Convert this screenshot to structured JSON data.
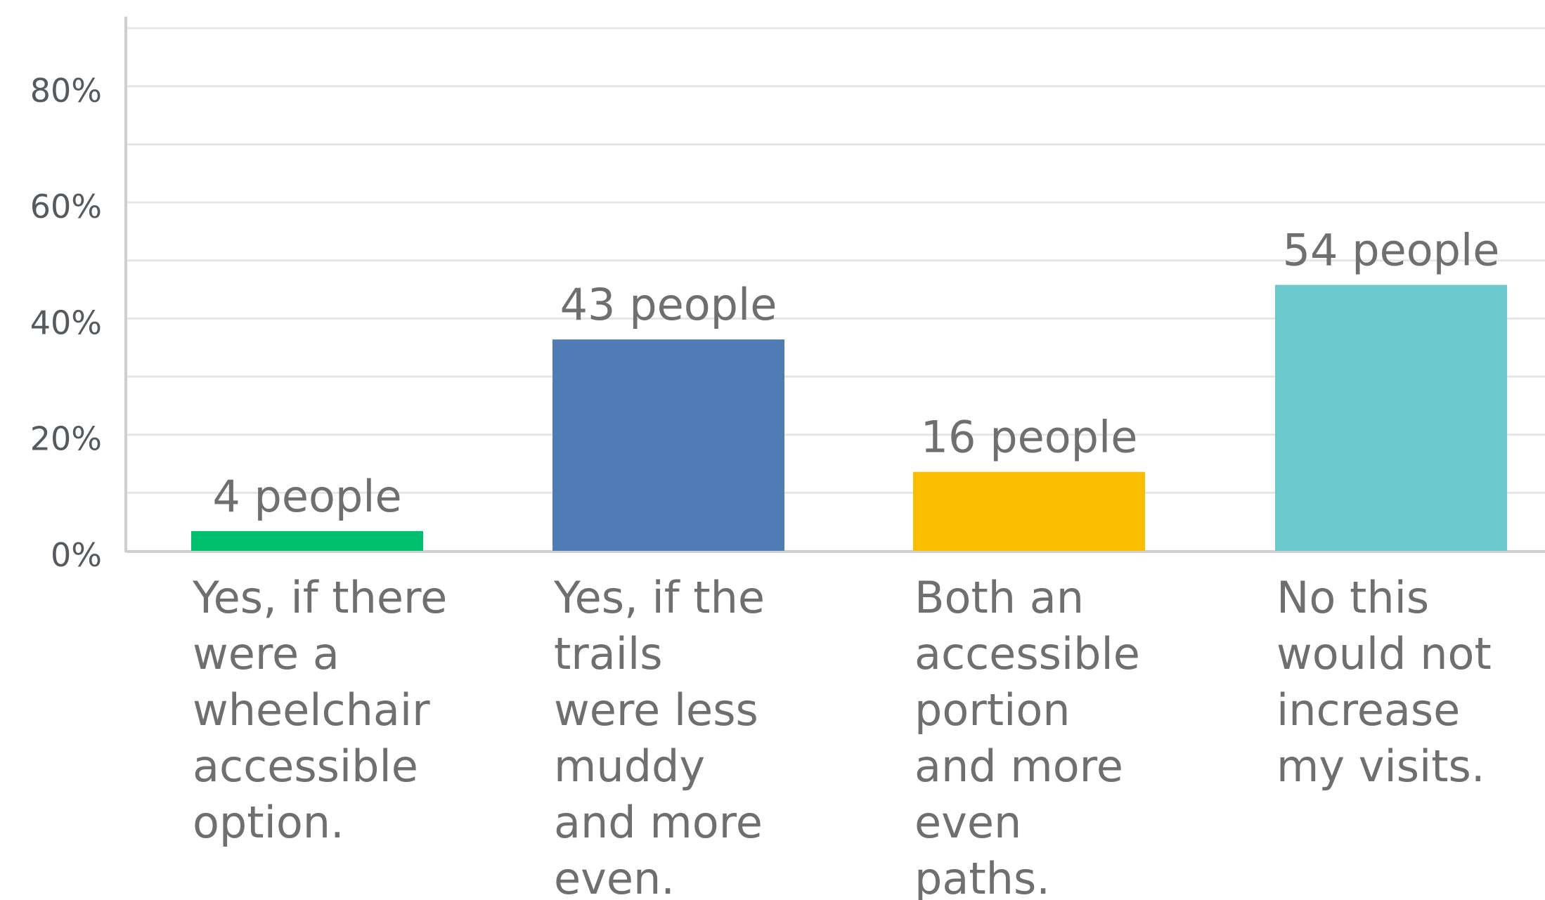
{
  "chart_data": {
    "type": "bar",
    "categories": [
      "Yes, if there were a wheelchair accessible option.",
      "Yes, if the trails were less muddy and more even.",
      "Both an accessible portion and more even paths.",
      "No this would not increase my visits."
    ],
    "category_lines": [
      [
        "Yes, if there",
        "were a",
        "wheelchair",
        "accessible",
        "option."
      ],
      [
        "Yes, if the",
        "trails",
        "were less",
        "muddy",
        "and more",
        "even."
      ],
      [
        "Both an",
        "accessible",
        "portion",
        "and more",
        "even",
        "paths."
      ],
      [
        "No this",
        "would not",
        "increase",
        "my visits."
      ]
    ],
    "values": [
      3.4,
      36.4,
      13.6,
      45.8
    ],
    "data_labels": [
      "4 people",
      "43 people",
      "16 people",
      "54 people"
    ],
    "colors": [
      "#00bf6f",
      "#507cb6",
      "#f9be00",
      "#6bc8cd"
    ],
    "ylim": [
      0,
      92
    ],
    "yticks": [
      0,
      20,
      40,
      60,
      80
    ],
    "ytick_labels": [
      "0%",
      "20%",
      "40%",
      "60%",
      "80%"
    ],
    "grid_step": 10,
    "grid": true,
    "title": "",
    "xlabel": "",
    "ylabel": ""
  }
}
